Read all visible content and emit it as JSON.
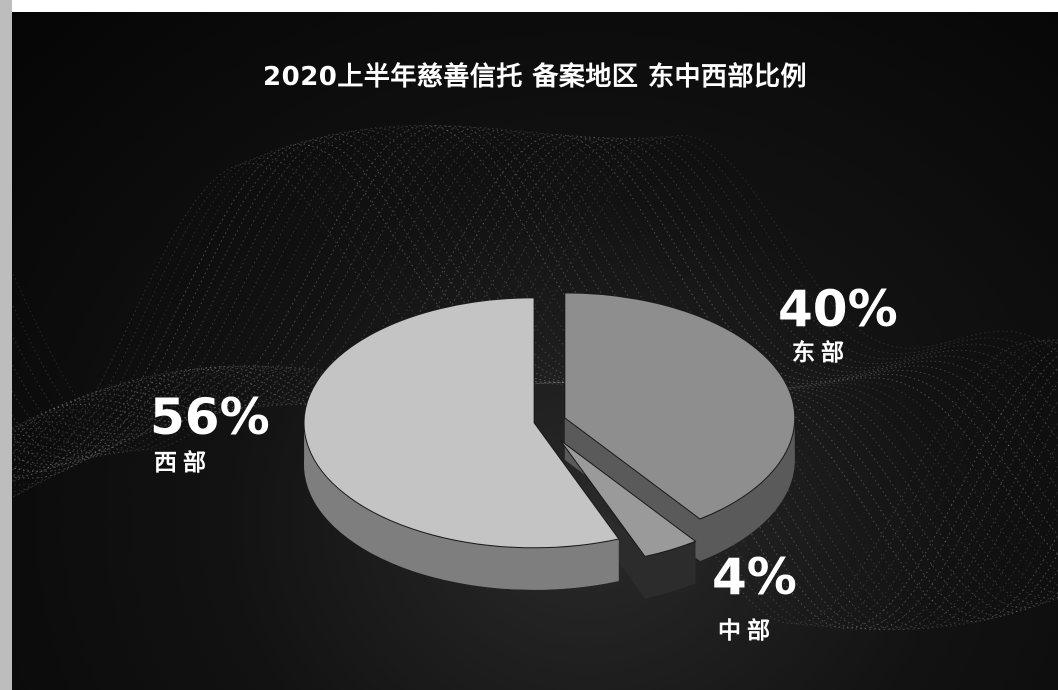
{
  "chart_data": {
    "type": "pie",
    "title": "2020上半年慈善信托 备案地区 东中西部比例",
    "slices": [
      {
        "label": "东部",
        "value": 40,
        "display": "40%",
        "color": "#8e8e8e",
        "side": "#5a5a5a"
      },
      {
        "label": "中部",
        "value": 4,
        "display": "4%",
        "color": "#9a9a9a",
        "side": "#2c2c2c"
      },
      {
        "label": "西部",
        "value": 56,
        "display": "56%",
        "color": "#c4c4c4",
        "side": "#7e7e7e"
      }
    ],
    "style": "3d-exploded",
    "legend": "none",
    "background": "#0a0a0a"
  }
}
